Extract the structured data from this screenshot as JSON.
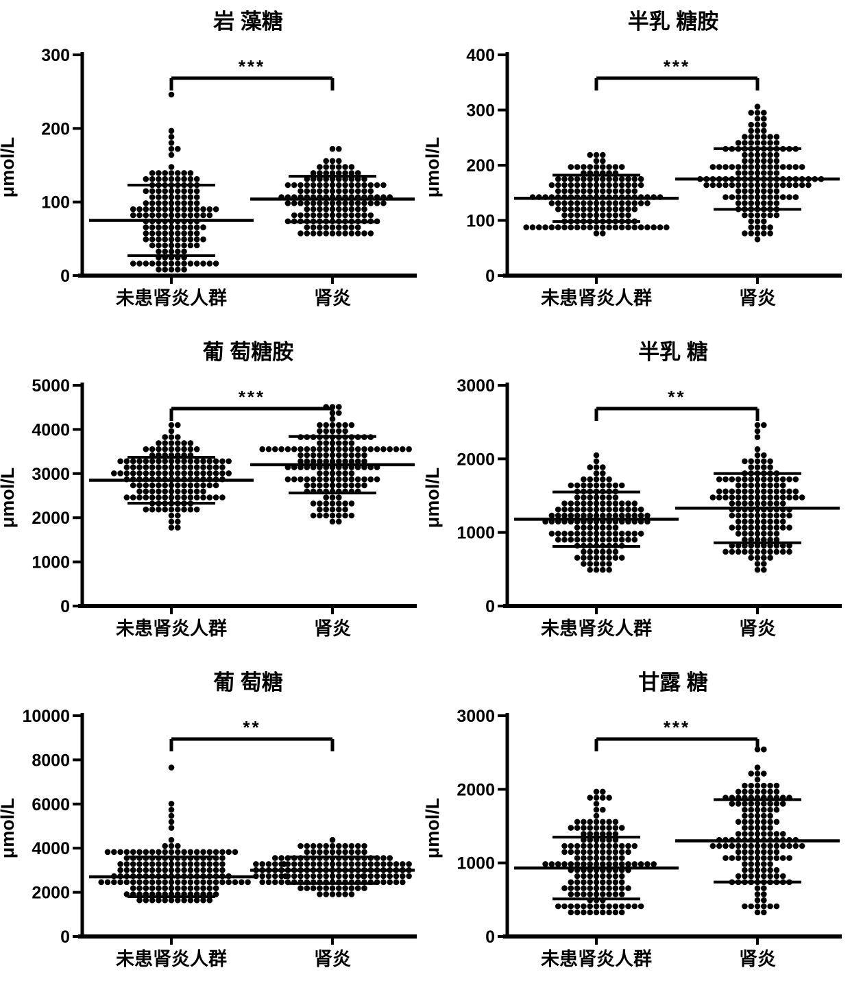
{
  "figure": {
    "background": "#ffffff",
    "ink_color": "#000000",
    "ylabel": "μmol/L",
    "x_group_labels": [
      "未患肾炎人群",
      "肾炎"
    ]
  },
  "chart_data": [
    {
      "type": "scatter",
      "variant": "beeswarm-dotplot",
      "id": "fucose",
      "title": "岩 藻糖",
      "significance": "***",
      "ylabel": "μmol/L",
      "ylim": [
        0,
        300
      ],
      "yticks": [
        0,
        100,
        200,
        300
      ],
      "categories": [
        "未患肾炎人群",
        "肾炎"
      ],
      "series": [
        {
          "name": "未患肾炎人群",
          "n": 160,
          "mean": 75,
          "sd": 48,
          "range": [
            8,
            215
          ],
          "outliers": [
            242
          ]
        },
        {
          "name": "肾炎",
          "n": 150,
          "mean": 104,
          "sd": 31,
          "range": [
            55,
            202
          ],
          "outliers": []
        }
      ],
      "error_bars": "mean ± SD",
      "legend": "none",
      "grid": false
    },
    {
      "type": "scatter",
      "variant": "beeswarm-dotplot",
      "id": "galactosamine",
      "title": "半乳 糖胺",
      "significance": "***",
      "ylabel": "μmol/L",
      "ylim": [
        0,
        400
      ],
      "yticks": [
        0,
        100,
        200,
        300,
        400
      ],
      "categories": [
        "未患肾炎人群",
        "肾炎"
      ],
      "series": [
        {
          "name": "未患肾炎人群",
          "n": 160,
          "mean": 140,
          "sd": 42,
          "range": [
            80,
            265
          ],
          "outliers": []
        },
        {
          "name": "肾炎",
          "n": 160,
          "mean": 175,
          "sd": 55,
          "range": [
            70,
            330
          ],
          "outliers": []
        }
      ],
      "error_bars": "mean ± SD",
      "legend": "none",
      "grid": false
    },
    {
      "type": "scatter",
      "variant": "beeswarm-dotplot",
      "id": "glucosamine",
      "title": "葡 萄糖胺",
      "significance": "***",
      "ylabel": "μmol/L",
      "ylim": [
        0,
        5000
      ],
      "yticks": [
        0,
        1000,
        2000,
        3000,
        4000,
        5000
      ],
      "categories": [
        "未患肾炎人群",
        "肾炎"
      ],
      "series": [
        {
          "name": "未患肾炎人群",
          "n": 160,
          "mean": 2850,
          "sd": 520,
          "range": [
            1750,
            4100
          ],
          "outliers": []
        },
        {
          "name": "肾炎",
          "n": 160,
          "mean": 3200,
          "sd": 640,
          "range": [
            1950,
            4750
          ],
          "outliers": []
        }
      ],
      "error_bars": "mean ± SD",
      "legend": "none",
      "grid": false
    },
    {
      "type": "scatter",
      "variant": "beeswarm-dotplot",
      "id": "galactose",
      "title": "半乳 糖",
      "significance": "**",
      "ylabel": "μmol/L",
      "ylim": [
        0,
        3000
      ],
      "yticks": [
        0,
        1000,
        2000,
        3000
      ],
      "categories": [
        "未患肾炎人群",
        "肾炎"
      ],
      "series": [
        {
          "name": "未患肾炎人群",
          "n": 160,
          "mean": 1180,
          "sd": 370,
          "range": [
            450,
            2100
          ],
          "outliers": []
        },
        {
          "name": "肾炎",
          "n": 160,
          "mean": 1330,
          "sd": 470,
          "range": [
            480,
            2500
          ],
          "outliers": []
        }
      ],
      "error_bars": "mean ± SD",
      "legend": "none",
      "grid": false
    },
    {
      "type": "scatter",
      "variant": "beeswarm-dotplot",
      "id": "glucose",
      "title": "葡 萄糖",
      "significance": "**",
      "ylabel": "μmol/L",
      "ylim": [
        0,
        10000
      ],
      "yticks": [
        0,
        2000,
        4000,
        6000,
        8000,
        10000
      ],
      "categories": [
        "未患肾炎人群",
        "肾炎"
      ],
      "series": [
        {
          "name": "未患肾炎人群",
          "n": 165,
          "mean": 2700,
          "sd": 900,
          "range": [
            1600,
            4000
          ],
          "outliers": [
            7600,
            6100,
            5800,
            5400,
            5100,
            4800,
            4500
          ]
        },
        {
          "name": "肾炎",
          "n": 160,
          "mean": 3000,
          "sd": 600,
          "range": [
            1800,
            4700
          ],
          "outliers": []
        }
      ],
      "error_bars": "mean ± SD",
      "legend": "none",
      "grid": false
    },
    {
      "type": "scatter",
      "variant": "beeswarm-dotplot",
      "id": "mannose",
      "title": "甘露 糖",
      "significance": "***",
      "ylabel": "μmol/L",
      "ylim": [
        0,
        3000
      ],
      "yticks": [
        0,
        1000,
        2000,
        3000
      ],
      "categories": [
        "未患肾炎人群",
        "肾炎"
      ],
      "series": [
        {
          "name": "未患肾炎人群",
          "n": 160,
          "mean": 930,
          "sd": 420,
          "range": [
            330,
            2150
          ],
          "outliers": []
        },
        {
          "name": "肾炎",
          "n": 160,
          "mean": 1300,
          "sd": 560,
          "range": [
            300,
            2620
          ],
          "outliers": []
        }
      ],
      "error_bars": "mean ± SD",
      "legend": "none",
      "grid": false
    }
  ]
}
